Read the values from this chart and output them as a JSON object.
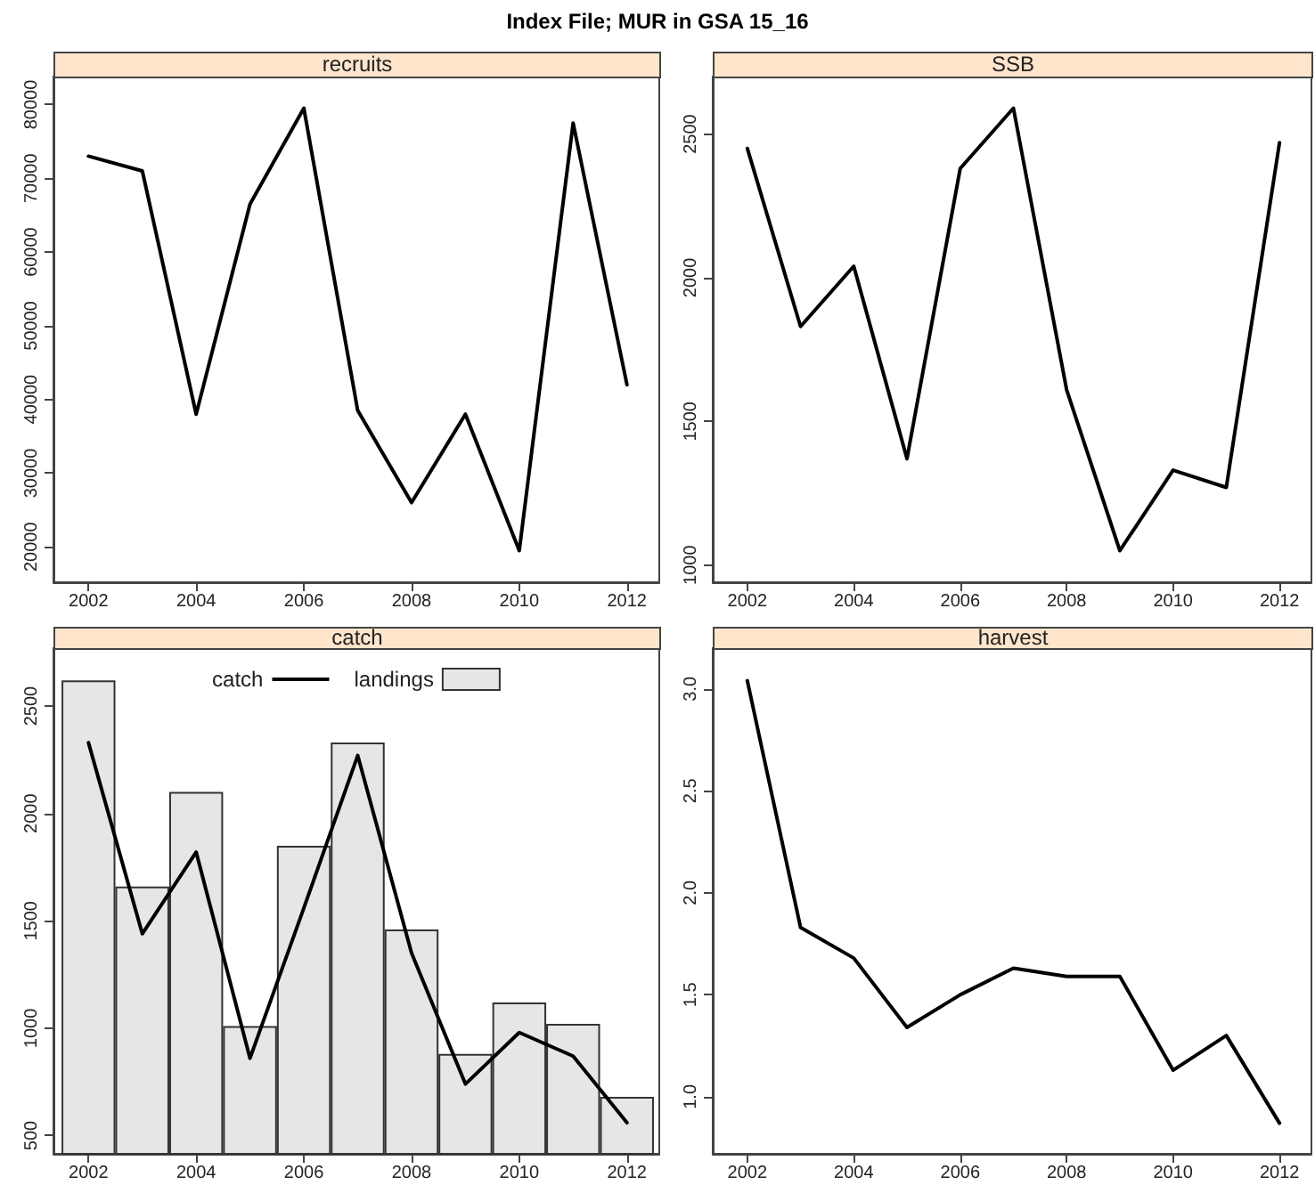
{
  "chart_data": [
    {
      "type": "line",
      "title": "Index File; MUR in GSA 15_16",
      "subtitle": "recruits",
      "x": [
        2002,
        2003,
        2004,
        2005,
        2006,
        2007,
        2008,
        2009,
        2010,
        2011,
        2012
      ],
      "values": [
        73000,
        71000,
        38000,
        66500,
        79500,
        38500,
        26000,
        38000,
        19500,
        77500,
        42000
      ],
      "color": "#000000",
      "xlim": [
        2001.35,
        2012.6
      ],
      "xticks": [
        2002,
        2004,
        2006,
        2008,
        2010,
        2012
      ],
      "ylim": [
        15200,
        83800
      ],
      "yticks": [
        20000,
        30000,
        40000,
        50000,
        60000,
        70000,
        80000
      ]
    },
    {
      "type": "line",
      "subtitle": "SSB",
      "x": [
        2002,
        2003,
        2004,
        2005,
        2006,
        2007,
        2008,
        2009,
        2010,
        2011,
        2012
      ],
      "values": [
        2450,
        1830,
        2040,
        1370,
        2380,
        2590,
        1610,
        1050,
        1330,
        1270,
        2470
      ],
      "color": "#000000",
      "xlim": [
        2001.35,
        2012.6
      ],
      "xticks": [
        2002,
        2004,
        2006,
        2008,
        2010,
        2012
      ],
      "ylim": [
        940,
        2700
      ],
      "yticks": [
        1000,
        1500,
        2000,
        2500
      ]
    },
    {
      "type": "bar",
      "subtitle": "catch",
      "x": [
        2002,
        2003,
        2004,
        2005,
        2006,
        2007,
        2008,
        2009,
        2010,
        2011,
        2012
      ],
      "series": [
        {
          "name": "catch",
          "type": "line",
          "color": "#000000",
          "values": [
            2330,
            1440,
            1820,
            860,
            1560,
            2270,
            1350,
            740,
            980,
            870,
            560
          ]
        },
        {
          "name": "landings",
          "color": "#e6e6e6",
          "values": [
            2620,
            1660,
            2100,
            1010,
            1850,
            2330,
            1460,
            880,
            1120,
            1020,
            680
          ]
        }
      ],
      "legend": "top",
      "xlim": [
        2001.35,
        2012.6
      ],
      "xticks": [
        2002,
        2004,
        2006,
        2008,
        2010,
        2012
      ],
      "ylim": [
        415,
        2770
      ],
      "yticks": [
        500,
        1000,
        1500,
        2000,
        2500
      ]
    },
    {
      "type": "line",
      "subtitle": "harvest",
      "x": [
        2002,
        2003,
        2004,
        2005,
        2006,
        2007,
        2008,
        2009,
        2010,
        2011,
        2012
      ],
      "values": [
        3.04,
        1.83,
        1.68,
        1.34,
        1.5,
        1.63,
        1.59,
        1.59,
        1.13,
        1.3,
        0.87
      ],
      "color": "#000000",
      "xlim": [
        2001.35,
        2012.6
      ],
      "xticks": [
        2002,
        2004,
        2006,
        2008,
        2010,
        2012
      ],
      "ylim": [
        0.72,
        3.2
      ],
      "yticks": [
        {
          "value": 1,
          "label": "1.0"
        },
        1.5,
        {
          "value": 2,
          "label": "2.0"
        },
        2.5,
        {
          "value": 3,
          "label": "3.0"
        }
      ]
    }
  ]
}
